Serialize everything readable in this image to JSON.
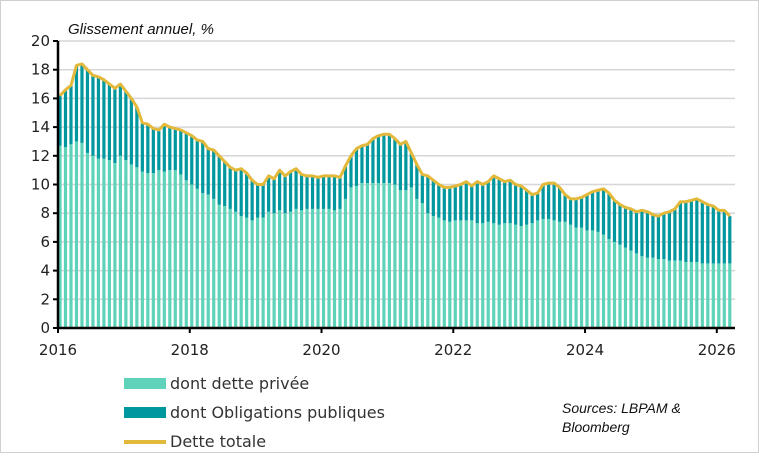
{
  "chart_data": {
    "type": "bar",
    "stacked": true,
    "subtitle": "Glissement annuel, %",
    "source": "Sources: LBPAM & Bloomberg",
    "ylim": [
      0,
      20
    ],
    "yticks": [
      "0",
      "2",
      "4",
      "6",
      "8",
      "10",
      "12",
      "14",
      "16",
      "18",
      "20"
    ],
    "xticks": [
      "2016",
      "2018",
      "2020",
      "2022",
      "2024",
      "2026"
    ],
    "grid": "horizontal",
    "legend_placement": "bottom-left",
    "x": [
      "2016-01",
      "2016-02",
      "2016-03",
      "2016-04",
      "2016-05",
      "2016-06",
      "2016-07",
      "2016-08",
      "2016-09",
      "2016-10",
      "2016-11",
      "2016-12",
      "2017-01",
      "2017-02",
      "2017-03",
      "2017-04",
      "2017-05",
      "2017-06",
      "2017-07",
      "2017-08",
      "2017-09",
      "2017-10",
      "2017-11",
      "2017-12",
      "2018-01",
      "2018-02",
      "2018-03",
      "2018-04",
      "2018-05",
      "2018-06",
      "2018-07",
      "2018-08",
      "2018-09",
      "2018-10",
      "2018-11",
      "2018-12",
      "2019-01",
      "2019-02",
      "2019-03",
      "2019-04",
      "2019-05",
      "2019-06",
      "2019-07",
      "2019-08",
      "2019-09",
      "2019-10",
      "2019-11",
      "2019-12",
      "2020-01",
      "2020-02",
      "2020-03",
      "2020-04",
      "2020-05",
      "2020-06",
      "2020-07",
      "2020-08",
      "2020-09",
      "2020-10",
      "2020-11",
      "2020-12",
      "2021-01",
      "2021-02",
      "2021-03",
      "2021-04",
      "2021-05",
      "2021-06",
      "2021-07",
      "2021-08",
      "2021-09",
      "2021-10",
      "2021-11",
      "2021-12",
      "2022-01",
      "2022-02",
      "2022-03",
      "2022-04",
      "2022-05",
      "2022-06",
      "2022-07",
      "2022-08",
      "2022-09",
      "2022-10",
      "2022-11",
      "2022-12",
      "2023-01",
      "2023-02",
      "2023-03",
      "2023-04",
      "2023-05",
      "2023-06",
      "2023-07",
      "2023-08",
      "2023-09",
      "2023-10",
      "2023-11",
      "2023-12",
      "2024-01",
      "2024-02",
      "2024-03",
      "2024-04",
      "2024-05",
      "2024-06",
      "2024-07",
      "2024-08",
      "2024-09",
      "2024-10",
      "2024-11",
      "2024-12",
      "2025-01",
      "2025-02",
      "2025-03",
      "2025-04",
      "2025-05",
      "2025-06",
      "2025-07",
      "2025-08",
      "2025-09",
      "2025-10",
      "2025-11",
      "2025-12",
      "2026-01",
      "2026-02",
      "2026-03"
    ],
    "series": [
      {
        "name": "dont dette privée",
        "kind": "bar",
        "color": "#5fd3b9",
        "values": [
          12.7,
          12.6,
          12.8,
          13.0,
          12.9,
          12.2,
          12.0,
          11.8,
          11.8,
          11.7,
          11.5,
          12.0,
          11.7,
          11.4,
          11.2,
          10.9,
          10.8,
          10.8,
          11.0,
          10.9,
          11.0,
          11.0,
          10.7,
          10.3,
          10.0,
          9.7,
          9.4,
          9.3,
          9.0,
          8.6,
          8.5,
          8.3,
          8.1,
          7.8,
          7.7,
          7.5,
          7.7,
          7.7,
          8.1,
          8.0,
          8.2,
          8.0,
          8.1,
          8.3,
          8.2,
          8.3,
          8.3,
          8.3,
          8.3,
          8.3,
          8.2,
          8.3,
          9.0,
          9.8,
          9.9,
          10.1,
          10.1,
          10.1,
          10.1,
          10.1,
          10.1,
          10.0,
          9.6,
          9.6,
          9.8,
          9.0,
          8.7,
          8.0,
          7.8,
          7.7,
          7.5,
          7.4,
          7.5,
          7.5,
          7.5,
          7.5,
          7.3,
          7.3,
          7.4,
          7.3,
          7.2,
          7.3,
          7.3,
          7.2,
          7.1,
          7.2,
          7.3,
          7.5,
          7.6,
          7.6,
          7.5,
          7.4,
          7.4,
          7.2,
          7.0,
          7.0,
          6.8,
          6.8,
          6.7,
          6.5,
          6.2,
          6.0,
          5.8,
          5.6,
          5.4,
          5.2,
          5.0,
          4.9,
          4.9,
          4.8,
          4.8,
          4.7,
          4.7,
          4.7,
          4.6,
          4.6,
          4.6,
          4.5,
          4.5,
          4.5,
          4.5,
          4.5,
          4.5
        ]
      },
      {
        "name": "dont Obligations publiques",
        "kind": "bar",
        "color": "#00979f",
        "values": [
          3.5,
          4.0,
          4.1,
          5.3,
          5.5,
          5.8,
          5.6,
          5.7,
          5.5,
          5.3,
          5.2,
          5.0,
          4.8,
          4.6,
          4.2,
          3.4,
          3.4,
          3.1,
          2.8,
          3.3,
          3.0,
          2.9,
          3.1,
          3.3,
          3.4,
          3.4,
          3.6,
          3.2,
          3.4,
          3.4,
          3.1,
          2.9,
          2.9,
          3.3,
          3.1,
          2.8,
          2.3,
          2.3,
          2.5,
          2.4,
          2.8,
          2.6,
          2.8,
          2.8,
          2.5,
          2.3,
          2.3,
          2.2,
          2.3,
          2.3,
          2.4,
          2.2,
          2.3,
          2.2,
          2.6,
          2.6,
          2.7,
          3.1,
          3.3,
          3.4,
          3.4,
          3.2,
          3.2,
          3.4,
          2.4,
          2.4,
          2.0,
          2.6,
          2.5,
          2.3,
          2.3,
          2.4,
          2.4,
          2.5,
          2.7,
          2.4,
          2.9,
          2.7,
          2.8,
          3.3,
          3.2,
          2.9,
          3.0,
          2.8,
          2.8,
          2.4,
          2.0,
          1.9,
          2.4,
          2.5,
          2.6,
          2.4,
          1.9,
          1.8,
          2.0,
          2.1,
          2.5,
          2.7,
          2.9,
          3.2,
          3.2,
          2.9,
          2.8,
          2.8,
          2.9,
          2.9,
          3.2,
          3.2,
          3.0,
          3.0,
          3.2,
          3.4,
          3.6,
          4.1,
          4.2,
          4.3,
          4.4,
          4.3,
          4.1,
          4.0,
          3.7,
          3.7,
          3.3
        ]
      },
      {
        "name": "Dette totale",
        "kind": "line",
        "color": "#e3b93c",
        "values": [
          16.2,
          16.6,
          16.9,
          18.3,
          18.4,
          18.0,
          17.6,
          17.5,
          17.3,
          17.0,
          16.7,
          17.0,
          16.5,
          16.0,
          15.4,
          14.3,
          14.2,
          13.9,
          13.8,
          14.2,
          14.0,
          13.9,
          13.8,
          13.6,
          13.4,
          13.1,
          13.0,
          12.5,
          12.4,
          12.0,
          11.6,
          11.2,
          11.0,
          11.1,
          10.8,
          10.3,
          10.0,
          10.0,
          10.6,
          10.4,
          11.0,
          10.6,
          10.9,
          11.1,
          10.7,
          10.6,
          10.6,
          10.5,
          10.6,
          10.6,
          10.6,
          10.5,
          11.3,
          12.0,
          12.5,
          12.7,
          12.8,
          13.2,
          13.4,
          13.5,
          13.5,
          13.2,
          12.8,
          13.0,
          12.2,
          11.4,
          10.7,
          10.6,
          10.3,
          10.0,
          9.8,
          9.8,
          9.9,
          10.0,
          10.2,
          9.9,
          10.2,
          10.0,
          10.2,
          10.6,
          10.4,
          10.2,
          10.3,
          10.0,
          9.9,
          9.6,
          9.3,
          9.4,
          10.0,
          10.1,
          10.1,
          9.8,
          9.3,
          9.0,
          9.0,
          9.1,
          9.3,
          9.5,
          9.6,
          9.7,
          9.4,
          8.9,
          8.6,
          8.4,
          8.3,
          8.1,
          8.2,
          8.1,
          7.9,
          7.8,
          8.0,
          8.1,
          8.3,
          8.8,
          8.8,
          8.9,
          9.0,
          8.8,
          8.6,
          8.5,
          8.2,
          8.2,
          7.8
        ]
      }
    ]
  }
}
